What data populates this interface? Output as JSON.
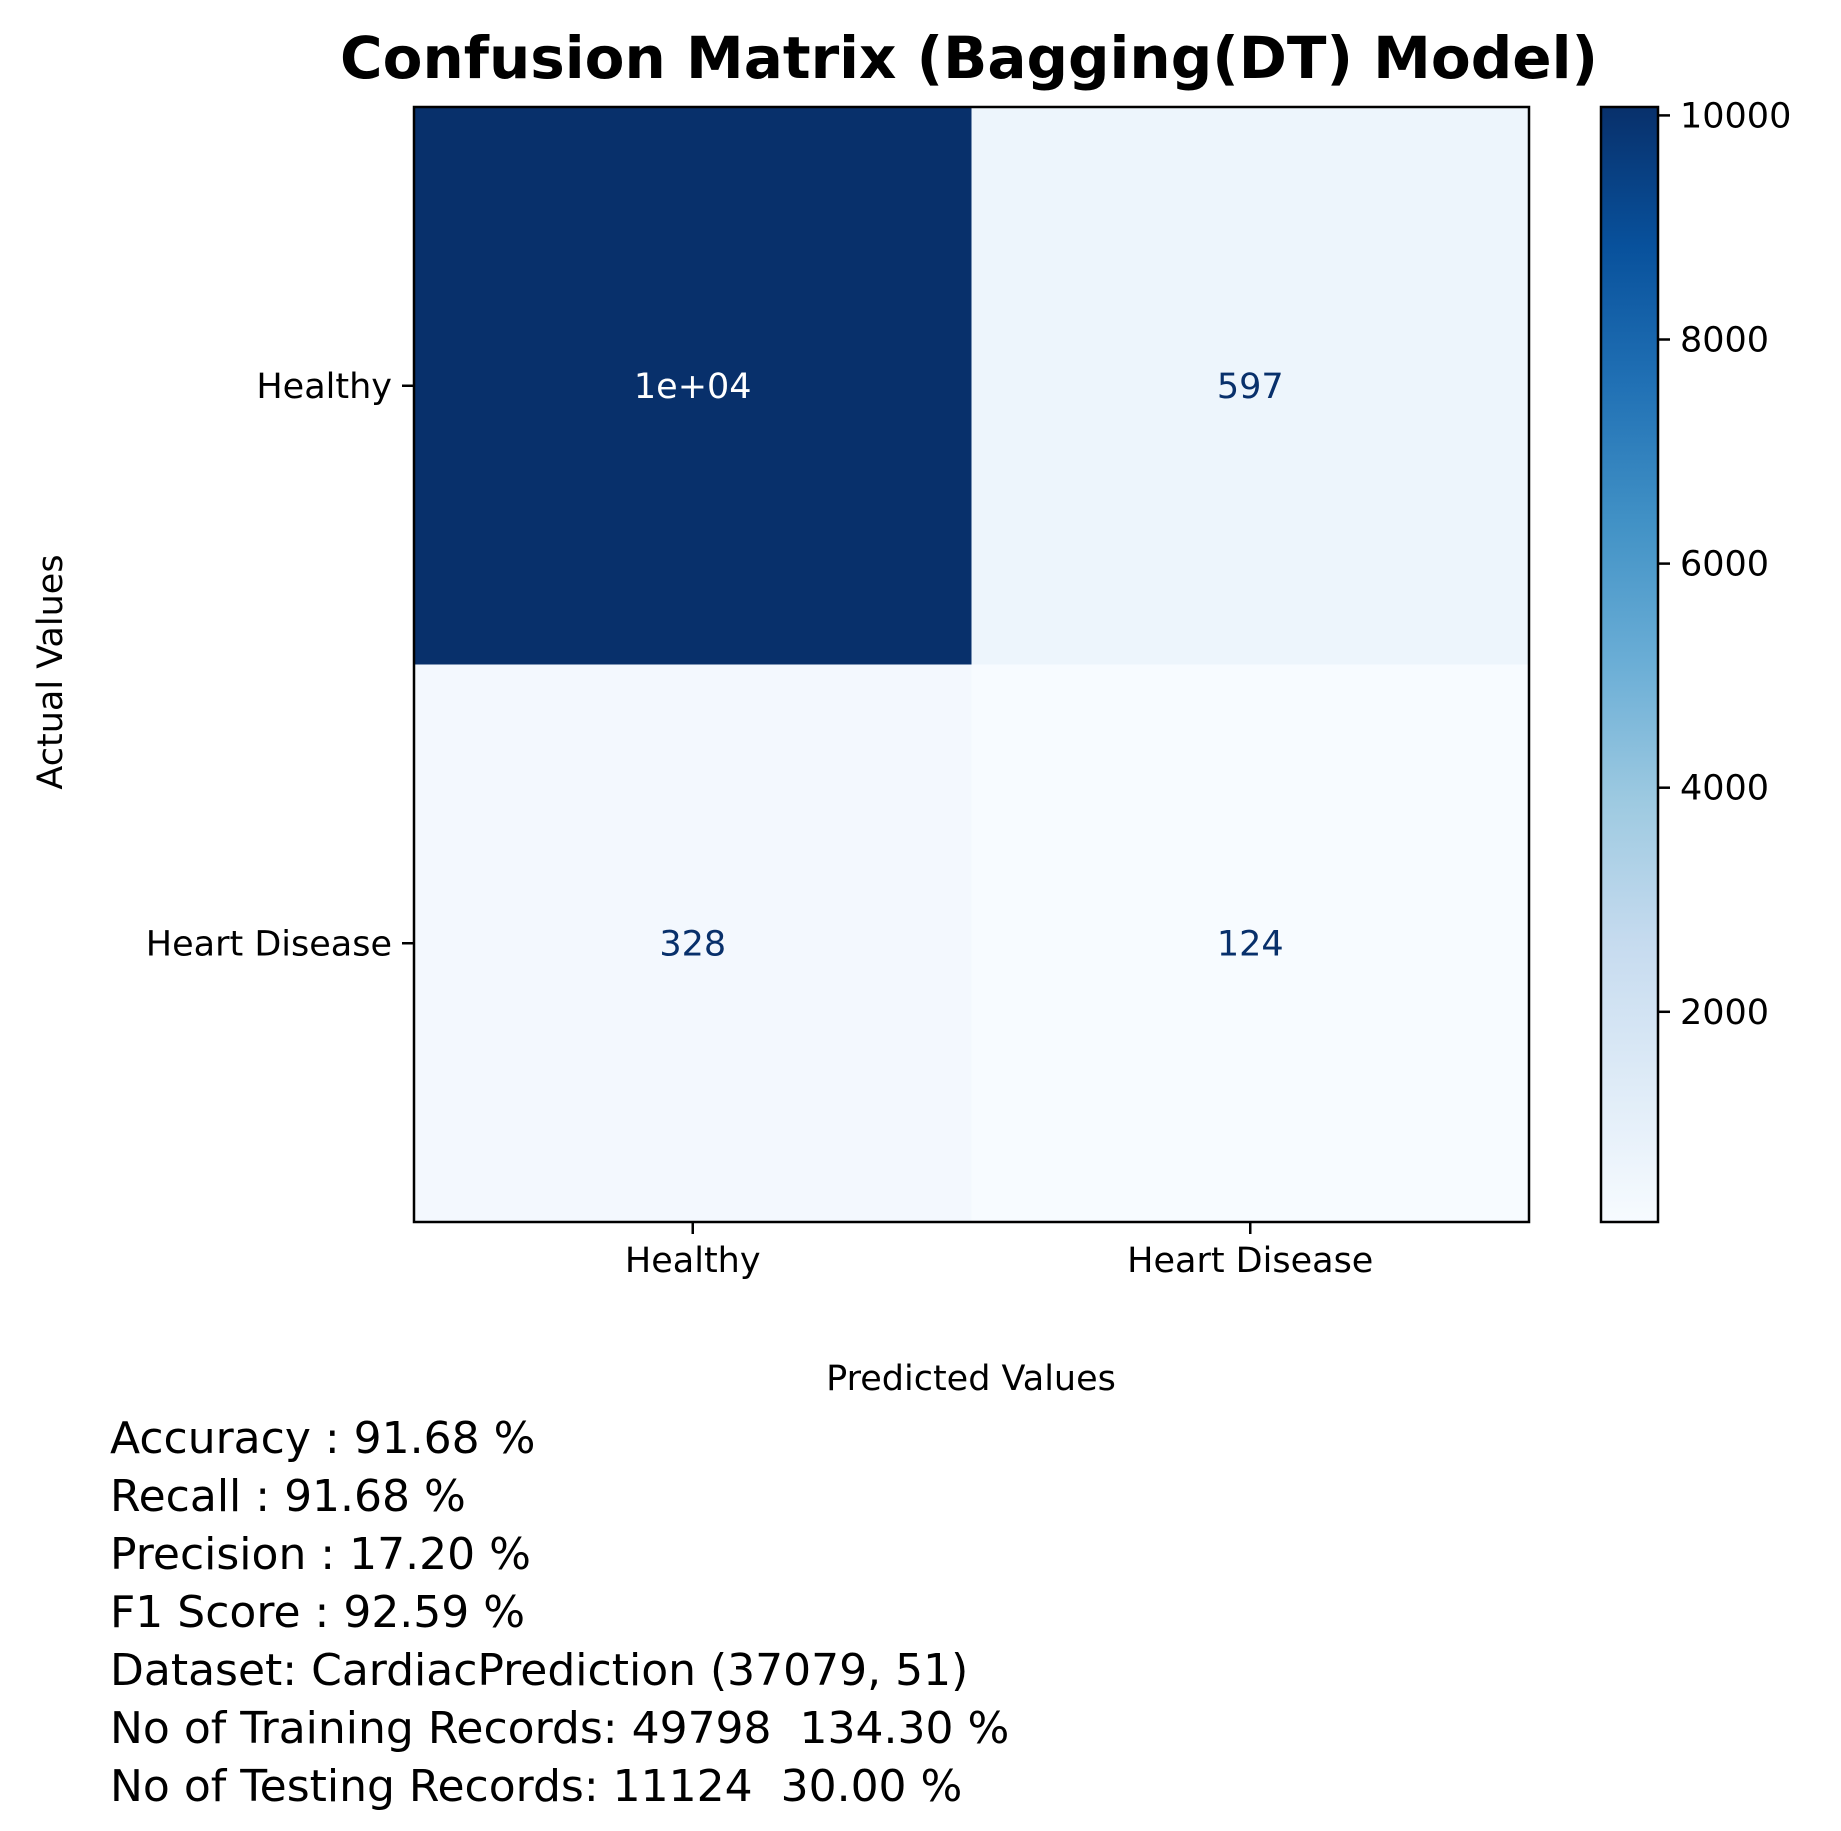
{
  "chart_data": {
    "type": "heatmap",
    "title": "Confusion Matrix (Bagging(DT) Model)",
    "xlabel": "Predicted Values",
    "ylabel": "Actual Values",
    "x_categories": [
      "Healthy",
      "Heart Disease"
    ],
    "y_categories": [
      "Healthy",
      "Heart Disease"
    ],
    "values": [
      [
        10075,
        597
      ],
      [
        328,
        124
      ]
    ],
    "cell_labels": [
      [
        "1e+04",
        "597"
      ],
      [
        "328",
        "124"
      ]
    ],
    "colormap": "Blues",
    "colorbar": {
      "range": [
        124,
        10075
      ],
      "ticks": [
        2000,
        4000,
        6000,
        8000,
        10000
      ],
      "tick_labels": [
        "2000",
        "4000",
        "6000",
        "8000",
        "10000"
      ]
    },
    "grid": false
  },
  "metrics": {
    "accuracy": "Accuracy : 91.68 %",
    "recall": "Recall : 91.68 %",
    "precision": "Precision : 17.20 %",
    "f1": "F1 Score : 92.59 %",
    "dataset": "Dataset: CardiacPrediction (37079, 51)",
    "training": "No of Training Records: 49798  134.30 %",
    "testing": "No of Testing Records: 11124  30.00 %"
  },
  "colors": {
    "text_on_dark": "#ffffff",
    "text_on_light": "#08306b",
    "axis": "#000000"
  }
}
